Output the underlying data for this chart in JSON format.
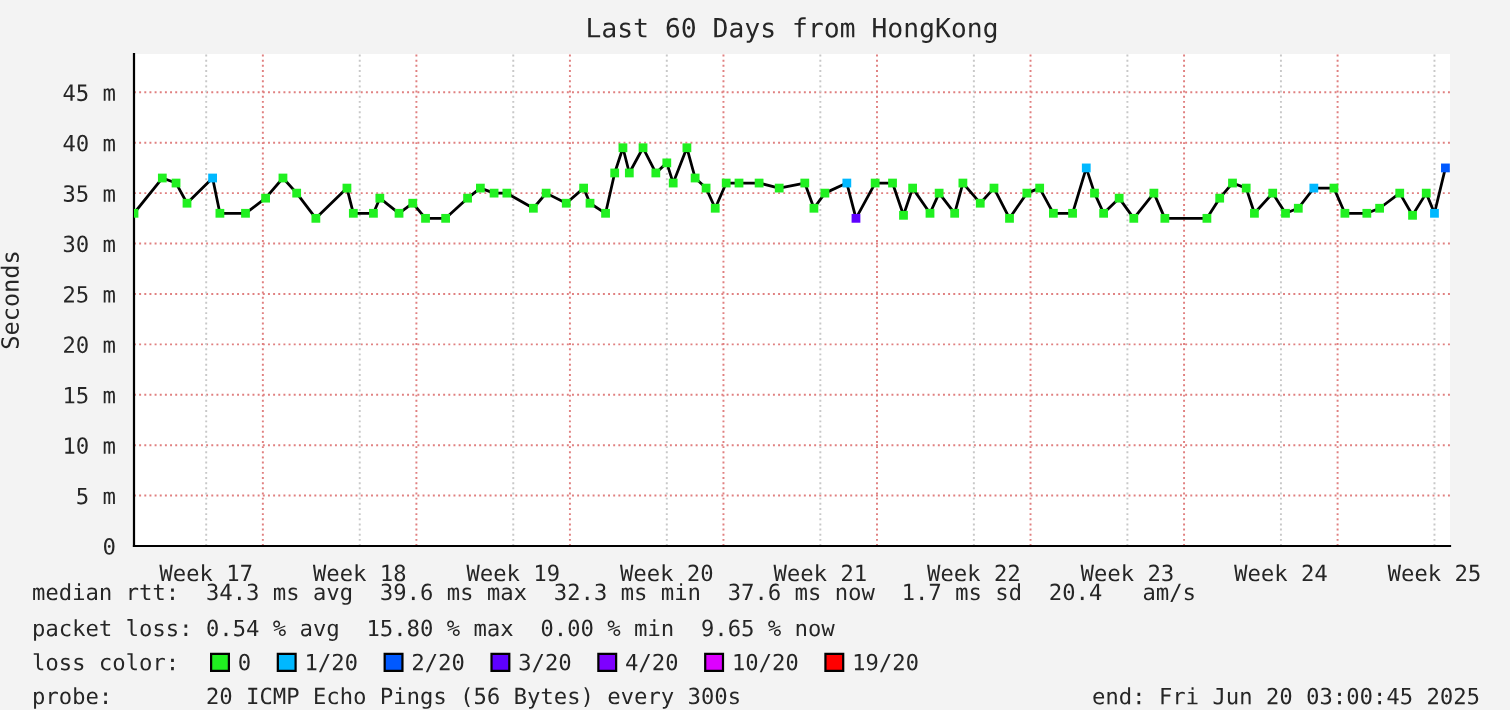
{
  "chart_data": {
    "type": "line",
    "title": "Last 60 Days from HongKong",
    "ylabel": "Seconds",
    "x": [
      "2025-04-21T03:00",
      "2025-04-22T10:00",
      "2025-04-23T01:00",
      "2025-04-23T13:00",
      "2025-04-24T17:00",
      "2025-04-25T01:00",
      "2025-04-26T05:00",
      "2025-04-27T03:00",
      "2025-04-27T22:00",
      "2025-04-28T13:00",
      "2025-04-29T10:00",
      "2025-04-30T20:00",
      "2025-05-01T03:00",
      "2025-05-02T01:00",
      "2025-05-02T08:00",
      "2025-05-03T05:00",
      "2025-05-03T20:00",
      "2025-05-04T10:00",
      "2025-05-05T08:00",
      "2025-05-06T08:00",
      "2025-05-06T22:00",
      "2025-05-07T13:00",
      "2025-05-08T03:00",
      "2025-05-09T08:00",
      "2025-05-09T22:00",
      "2025-05-10T20:00",
      "2025-05-11T15:00",
      "2025-05-11T22:00",
      "2025-05-12T15:00",
      "2025-05-13T01:00",
      "2025-05-13T10:00",
      "2025-05-13T17:00",
      "2025-05-14T08:00",
      "2025-05-14T22:00",
      "2025-05-15T10:00",
      "2025-05-15T17:00",
      "2025-05-16T08:00",
      "2025-05-16T17:00",
      "2025-05-17T05:00",
      "2025-05-17T15:00",
      "2025-05-18T03:00",
      "2025-05-18T17:00",
      "2025-05-19T15:00",
      "2025-05-20T13:00",
      "2025-05-21T17:00",
      "2025-05-22T03:00",
      "2025-05-22T15:00",
      "2025-05-23T15:00",
      "2025-05-24T01:00",
      "2025-05-24T22:00",
      "2025-05-25T17:00",
      "2025-05-26T05:00",
      "2025-05-26T15:00",
      "2025-05-27T10:00",
      "2025-05-27T20:00",
      "2025-05-28T13:00",
      "2025-05-28T22:00",
      "2025-05-29T17:00",
      "2025-05-30T08:00",
      "2025-05-31T01:00",
      "2025-05-31T20:00",
      "2025-06-01T10:00",
      "2025-06-02T01:00",
      "2025-06-02T22:00",
      "2025-06-03T13:00",
      "2025-06-03T22:00",
      "2025-06-04T08:00",
      "2025-06-05T01:00",
      "2025-06-05T17:00",
      "2025-06-06T15:00",
      "2025-06-07T03:00",
      "2025-06-09T01:00",
      "2025-06-09T15:00",
      "2025-06-10T05:00",
      "2025-06-10T20:00",
      "2025-06-11T05:00",
      "2025-06-12T01:00",
      "2025-06-12T15:00",
      "2025-06-13T05:00",
      "2025-06-13T22:00",
      "2025-06-14T20:00",
      "2025-06-15T08:00",
      "2025-06-16T08:00",
      "2025-06-16T22:00",
      "2025-06-17T20:00",
      "2025-06-18T10:00",
      "2025-06-19T01:00",
      "2025-06-19T10:00",
      "2025-06-19T22:00"
    ],
    "series": [
      {
        "color": "#000000",
        "values": [
          33,
          36.5,
          36,
          34,
          36.5,
          33,
          33,
          34.5,
          36.5,
          35,
          32.5,
          35.5,
          33,
          33,
          34.5,
          33,
          34,
          32.5,
          32.5,
          34.5,
          35.5,
          35,
          35,
          33.5,
          35,
          34,
          35.5,
          34,
          33,
          37,
          39.5,
          37,
          39.5,
          37,
          38,
          36,
          39.5,
          36.5,
          35.5,
          33.5,
          36,
          36,
          36,
          35.5,
          36,
          33.5,
          35,
          36,
          32.5,
          36,
          36,
          32.8,
          35.5,
          33,
          35,
          33,
          36,
          34,
          35.5,
          32.5,
          35,
          35.5,
          33,
          33,
          37.5,
          35,
          33,
          34.5,
          32.5,
          35,
          32.5,
          32.5,
          34.5,
          36,
          35.5,
          33,
          35,
          33,
          33.5,
          35.5,
          35.5,
          33,
          33,
          33.5,
          35,
          32.8,
          35,
          33,
          37.5
        ]
      },
      {
        "type": "scatter",
        "marker": "square",
        "name": "0",
        "color": "#20f020",
        "values": [
          33,
          36.5,
          36,
          34,
          null,
          33,
          33,
          34.5,
          36.5,
          35,
          32.5,
          35.5,
          33,
          33,
          34.5,
          33,
          34,
          32.5,
          32.5,
          34.5,
          35.5,
          35,
          35,
          33.5,
          35,
          34,
          35.5,
          34,
          33,
          37,
          39.5,
          37,
          39.5,
          37,
          38,
          36,
          39.5,
          36.5,
          35.5,
          33.5,
          36,
          36,
          36,
          35.5,
          36,
          33.5,
          35,
          null,
          null,
          36,
          36,
          32.8,
          35.5,
          33,
          35,
          33,
          36,
          34,
          35.5,
          32.5,
          35,
          35.5,
          33,
          33,
          null,
          35,
          33,
          34.5,
          32.5,
          35,
          32.5,
          32.5,
          34.5,
          36,
          35.5,
          33,
          35,
          33,
          33.5,
          null,
          35.5,
          33,
          33,
          33.5,
          35,
          32.8,
          35,
          null,
          null
        ]
      },
      {
        "type": "scatter",
        "marker": "square",
        "name": "1/20",
        "color": "#00b8ff",
        "values": [
          null,
          null,
          null,
          null,
          36.5,
          null,
          null,
          null,
          null,
          null,
          null,
          null,
          null,
          null,
          null,
          null,
          null,
          null,
          null,
          null,
          null,
          null,
          null,
          null,
          null,
          null,
          null,
          null,
          null,
          null,
          null,
          null,
          null,
          null,
          null,
          null,
          null,
          null,
          null,
          null,
          null,
          null,
          null,
          null,
          null,
          null,
          null,
          36,
          null,
          null,
          null,
          null,
          null,
          null,
          null,
          null,
          null,
          null,
          null,
          null,
          null,
          null,
          null,
          null,
          37.5,
          null,
          null,
          null,
          null,
          null,
          null,
          null,
          null,
          null,
          null,
          null,
          null,
          null,
          null,
          35.5,
          null,
          null,
          null,
          null,
          null,
          null,
          null,
          33,
          null
        ]
      },
      {
        "type": "scatter",
        "marker": "square",
        "name": "2/20",
        "color": "#0059ff",
        "values": [
          null,
          null,
          null,
          null,
          null,
          null,
          null,
          null,
          null,
          null,
          null,
          null,
          null,
          null,
          null,
          null,
          null,
          null,
          null,
          null,
          null,
          null,
          null,
          null,
          null,
          null,
          null,
          null,
          null,
          null,
          null,
          null,
          null,
          null,
          null,
          null,
          null,
          null,
          null,
          null,
          null,
          null,
          null,
          null,
          null,
          null,
          null,
          null,
          null,
          null,
          null,
          null,
          null,
          null,
          null,
          null,
          null,
          null,
          null,
          null,
          null,
          null,
          null,
          null,
          null,
          null,
          null,
          null,
          null,
          null,
          null,
          null,
          null,
          null,
          null,
          null,
          null,
          null,
          null,
          null,
          null,
          null,
          null,
          null,
          null,
          null,
          null,
          null,
          37.5
        ]
      },
      {
        "type": "scatter",
        "marker": "square",
        "name": "3/20",
        "color": "#5e00ff",
        "values": [
          null,
          null,
          null,
          null,
          null,
          null,
          null,
          null,
          null,
          null,
          null,
          null,
          null,
          null,
          null,
          null,
          null,
          null,
          null,
          null,
          null,
          null,
          null,
          null,
          null,
          null,
          null,
          null,
          null,
          null,
          null,
          null,
          null,
          null,
          null,
          null,
          null,
          null,
          null,
          null,
          null,
          null,
          null,
          null,
          null,
          null,
          null,
          null,
          32.5,
          null,
          null,
          null,
          null,
          null,
          null,
          null,
          null,
          null,
          null,
          null,
          null,
          null,
          null,
          null,
          null,
          null,
          null,
          null,
          null,
          null,
          null,
          null,
          null,
          null,
          null,
          null,
          null,
          null,
          null,
          null,
          null,
          null,
          null,
          null,
          null,
          null,
          null,
          null,
          null
        ]
      },
      {
        "type": "scatter",
        "marker": "square",
        "name": "4/20",
        "color": "#7e00ff",
        "values": [
          null,
          null,
          null,
          null,
          null,
          null,
          null,
          null,
          null,
          null,
          null,
          null,
          null,
          null,
          null,
          null,
          null,
          null,
          null,
          null,
          null,
          null,
          null,
          null,
          null,
          null,
          null,
          null,
          null,
          null,
          null,
          null,
          null,
          null,
          null,
          null,
          null,
          null,
          null,
          null,
          null,
          null,
          null,
          null,
          null,
          null,
          null,
          null,
          null,
          null,
          null,
          null,
          null,
          null,
          null,
          null,
          null,
          null,
          null,
          null,
          null,
          null,
          null,
          null,
          null,
          null,
          null,
          null,
          null,
          null,
          null,
          null,
          null,
          null,
          null,
          null,
          null,
          null,
          null,
          null,
          null,
          null,
          null,
          null,
          null,
          null,
          null,
          null,
          null
        ]
      },
      {
        "type": "scatter",
        "marker": "square",
        "name": "10/20",
        "color": "#dd00ff",
        "values": [
          null,
          null,
          null,
          null,
          null,
          null,
          null,
          null,
          null,
          null,
          null,
          null,
          null,
          null,
          null,
          null,
          null,
          null,
          null,
          null,
          null,
          null,
          null,
          null,
          null,
          null,
          null,
          null,
          null,
          null,
          null,
          null,
          null,
          null,
          null,
          null,
          null,
          null,
          null,
          null,
          null,
          null,
          null,
          null,
          null,
          null,
          null,
          null,
          null,
          null,
          null,
          null,
          null,
          null,
          null,
          null,
          null,
          null,
          null,
          null,
          null,
          null,
          null,
          null,
          null,
          null,
          null,
          null,
          null,
          null,
          null,
          null,
          null,
          null,
          null,
          null,
          null,
          null,
          null,
          null,
          null,
          null,
          null,
          null,
          null,
          null,
          null,
          null,
          null
        ]
      },
      {
        "type": "scatter",
        "marker": "square",
        "name": "19/20",
        "color": "#ff0000",
        "values": [
          null,
          null,
          null,
          null,
          null,
          null,
          null,
          null,
          null,
          null,
          null,
          null,
          null,
          null,
          null,
          null,
          null,
          null,
          null,
          null,
          null,
          null,
          null,
          null,
          null,
          null,
          null,
          null,
          null,
          null,
          null,
          null,
          null,
          null,
          null,
          null,
          null,
          null,
          null,
          null,
          null,
          null,
          null,
          null,
          null,
          null,
          null,
          null,
          null,
          null,
          null,
          null,
          null,
          null,
          null,
          null,
          null,
          null,
          null,
          null,
          null,
          null,
          null,
          null,
          null,
          null,
          null,
          null,
          null,
          null,
          null,
          null,
          null,
          null,
          null,
          null,
          null,
          null,
          null,
          null,
          null,
          null,
          null,
          null,
          null,
          null,
          null,
          null,
          null
        ]
      }
    ],
    "xlim": [
      "2025-04-21T03:00",
      "2025-06-20T03:00"
    ],
    "xticks": [
      {
        "value": "2025-04-24T10:00",
        "label": "Week 17"
      },
      {
        "value": "2025-04-27",
        "label": null
      },
      {
        "value": "2025-05-01T10:00",
        "label": "Week 18"
      },
      {
        "value": "2025-05-04",
        "label": null
      },
      {
        "value": "2025-05-08T10:00",
        "label": "Week 19"
      },
      {
        "value": "2025-05-11",
        "label": null
      },
      {
        "value": "2025-05-15T10:00",
        "label": "Week 20"
      },
      {
        "value": "2025-05-18",
        "label": null
      },
      {
        "value": "2025-05-22T10:00",
        "label": "Week 21"
      },
      {
        "value": "2025-05-25",
        "label": null
      },
      {
        "value": "2025-05-29T10:00",
        "label": "Week 22"
      },
      {
        "value": "2025-06-01",
        "label": null
      },
      {
        "value": "2025-06-05T10:00",
        "label": "Week 23"
      },
      {
        "value": "2025-06-08",
        "label": null
      },
      {
        "value": "2025-06-12T10:00",
        "label": "Week 24"
      },
      {
        "value": "2025-06-15",
        "label": null
      },
      {
        "value": "2025-06-19T10:00",
        "label": "Week 25"
      }
    ],
    "ylim": [
      0,
      48.8
    ],
    "yticks": [
      0,
      {
        "value": 5,
        "label": "5 m"
      },
      {
        "value": 10,
        "label": "10 m"
      },
      {
        "value": 15,
        "label": "15 m"
      },
      {
        "value": 20,
        "label": "20 m"
      },
      {
        "value": 25,
        "label": "25 m"
      },
      {
        "value": 30,
        "label": "30 m"
      },
      {
        "value": 35,
        "label": "35 m"
      },
      {
        "value": 40,
        "label": "40 m"
      },
      {
        "value": 45,
        "label": "45 m"
      }
    ],
    "grid": true,
    "line_style": "solid",
    "legend": "bottom",
    "legend_title": "loss color:",
    "annotations": [
      "median rtt:  34.3 ms avg  39.6 ms max  32.3 ms min  37.6 ms now  1.7 ms sd  20.4   am/s",
      "packet loss: 0.54 % avg  15.80 % max  0.00 % min  9.65 % now",
      "probe:       20 ICMP Echo Pings (56 Bytes) every 300s",
      "end: Fri Jun 20 03:00:45 2025"
    ]
  }
}
